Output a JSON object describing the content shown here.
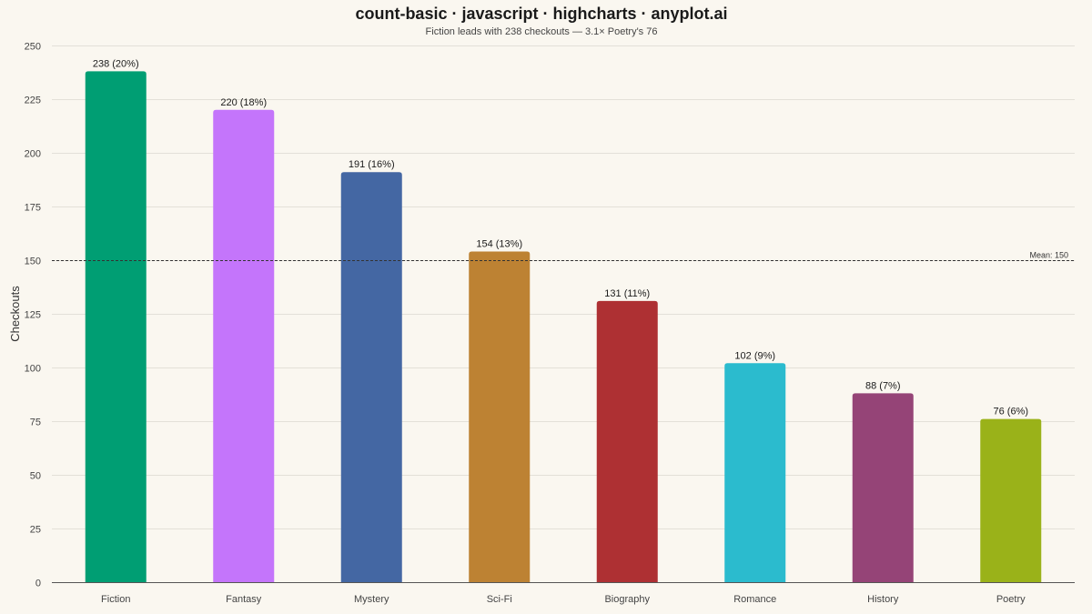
{
  "chart_data": {
    "type": "bar",
    "title": "count-basic · javascript · highcharts · anyplot.ai",
    "subtitle": "Fiction leads with 238 checkouts — 3.1× Poetry's 76",
    "xlabel": "",
    "ylabel": "Checkouts",
    "ylim": [
      0,
      250
    ],
    "yticks": [
      0,
      25,
      50,
      75,
      100,
      125,
      150,
      175,
      200,
      225,
      250
    ],
    "grid": true,
    "categories": [
      "Fiction",
      "Fantasy",
      "Mystery",
      "Sci-Fi",
      "Biography",
      "Romance",
      "History",
      "Poetry"
    ],
    "values": [
      238,
      220,
      191,
      154,
      131,
      102,
      88,
      76
    ],
    "data_labels": [
      "238 (20%)",
      "220 (18%)",
      "191 (16%)",
      "154 (13%)",
      "131 (11%)",
      "102 (9%)",
      "88 (7%)",
      "76 (6%)"
    ],
    "colors": [
      "#009E73",
      "#C475FB",
      "#4467A3",
      "#BD8233",
      "#AE3033",
      "#2BBBCE",
      "#954477",
      "#9AB219"
    ],
    "reference_line": {
      "value": 150,
      "label": "Mean: 150",
      "style": "dashed",
      "color": "#333333"
    }
  }
}
